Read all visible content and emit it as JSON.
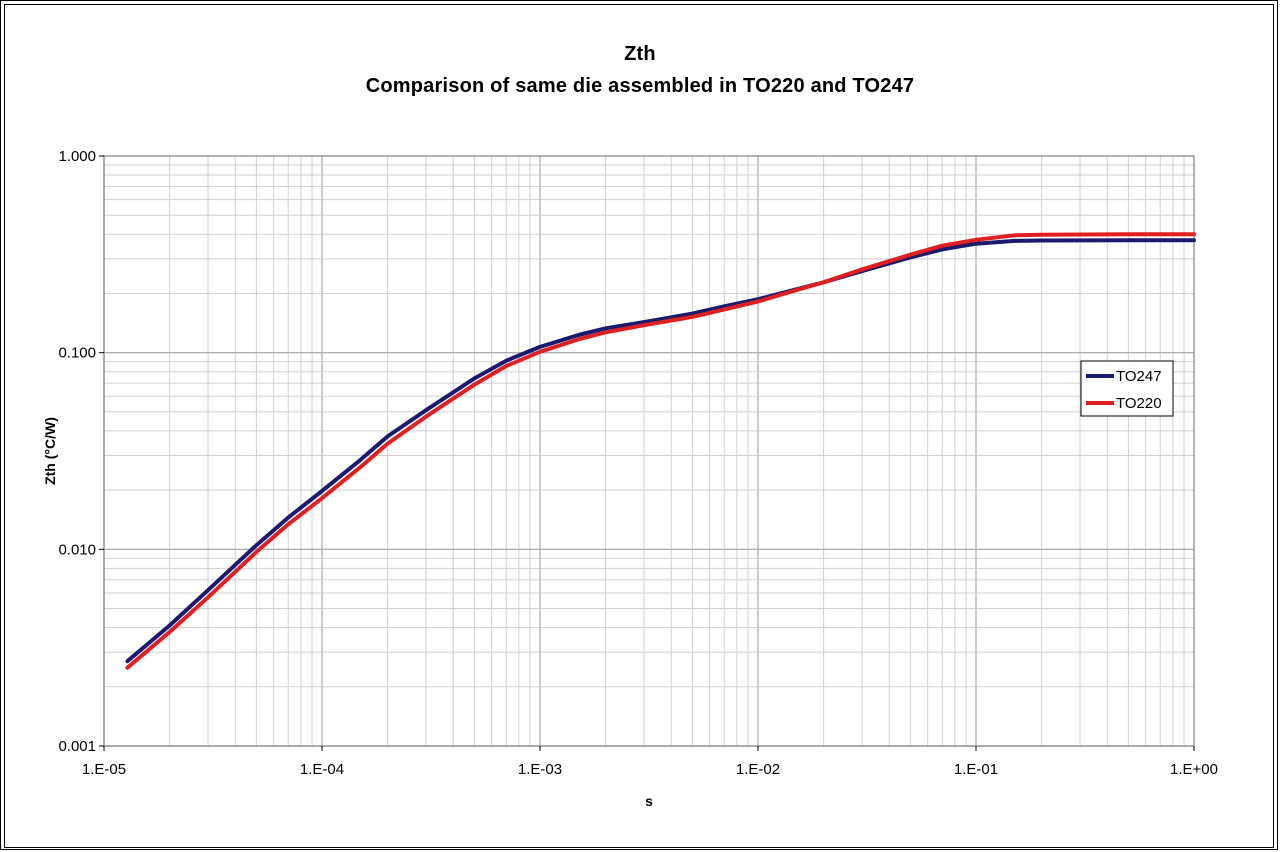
{
  "chart_data": {
    "type": "line",
    "title": "Zth",
    "subtitle": "Comparison of  same die assembled in TO220 and TO247",
    "xlabel": "s",
    "ylabel": "Zth (°C/W)",
    "xscale": "log",
    "yscale": "log",
    "xlim": [
      1e-05,
      1
    ],
    "ylim": [
      0.001,
      1
    ],
    "x_tick_labels": [
      "1.E-05",
      "1.E-04",
      "1.E-03",
      "1.E-02",
      "1.E-01",
      "1.E+00"
    ],
    "y_tick_labels": [
      "0.001",
      "0.010",
      "0.100",
      "1.000"
    ],
    "grid": true,
    "legend_position": "right",
    "series": [
      {
        "name": "TO247",
        "color": "#1a1a6e",
        "points": [
          [
            1.28e-05,
            0.0027
          ],
          [
            2e-05,
            0.0041
          ],
          [
            3e-05,
            0.0062
          ],
          [
            5e-05,
            0.0105
          ],
          [
            7e-05,
            0.0145
          ],
          [
            0.0001,
            0.0198
          ],
          [
            0.00015,
            0.0285
          ],
          [
            0.0002,
            0.0375
          ],
          [
            0.0003,
            0.051
          ],
          [
            0.0005,
            0.074
          ],
          [
            0.0007,
            0.091
          ],
          [
            0.001,
            0.107
          ],
          [
            0.0015,
            0.123
          ],
          [
            0.002,
            0.133
          ],
          [
            0.003,
            0.143
          ],
          [
            0.005,
            0.158
          ],
          [
            0.007,
            0.172
          ],
          [
            0.01,
            0.187
          ],
          [
            0.015,
            0.21
          ],
          [
            0.02,
            0.228
          ],
          [
            0.03,
            0.26
          ],
          [
            0.05,
            0.305
          ],
          [
            0.07,
            0.335
          ],
          [
            0.1,
            0.358
          ],
          [
            0.15,
            0.37
          ],
          [
            0.2,
            0.372
          ],
          [
            0.5,
            0.373
          ],
          [
            1.0,
            0.373
          ]
        ]
      },
      {
        "name": "TO220",
        "color": "#e02020",
        "points": [
          [
            1.28e-05,
            0.0025
          ],
          [
            2e-05,
            0.0038
          ],
          [
            3e-05,
            0.0057
          ],
          [
            5e-05,
            0.0097
          ],
          [
            7e-05,
            0.0134
          ],
          [
            0.0001,
            0.0182
          ],
          [
            0.00015,
            0.0262
          ],
          [
            0.0002,
            0.0345
          ],
          [
            0.0003,
            0.0473
          ],
          [
            0.0005,
            0.0688
          ],
          [
            0.0007,
            0.0855
          ],
          [
            0.001,
            0.101
          ],
          [
            0.0015,
            0.117
          ],
          [
            0.002,
            0.127
          ],
          [
            0.003,
            0.138
          ],
          [
            0.005,
            0.152
          ],
          [
            0.007,
            0.166
          ],
          [
            0.01,
            0.182
          ],
          [
            0.015,
            0.208
          ],
          [
            0.02,
            0.228
          ],
          [
            0.03,
            0.265
          ],
          [
            0.05,
            0.315
          ],
          [
            0.07,
            0.35
          ],
          [
            0.1,
            0.375
          ],
          [
            0.15,
            0.395
          ],
          [
            0.2,
            0.398
          ],
          [
            0.5,
            0.4
          ],
          [
            1.0,
            0.4
          ]
        ]
      }
    ]
  }
}
